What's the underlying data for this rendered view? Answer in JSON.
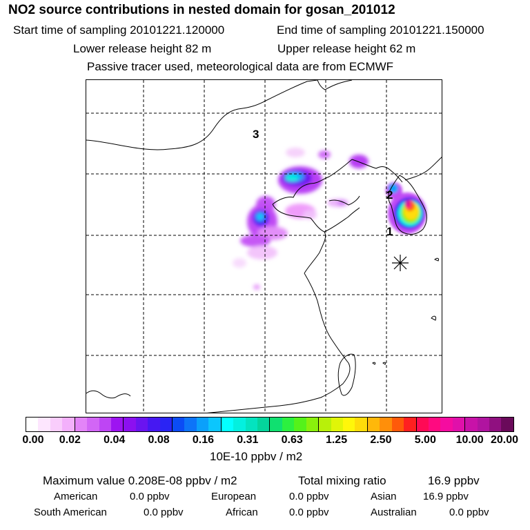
{
  "header": {
    "title": "NO2 source contributions in nested domain for gosan_201012",
    "start_time": "Start time of sampling 20101221.120000",
    "end_time": "End time of sampling 20101221.150000",
    "lower_height": "Lower release height   82 m",
    "upper_height": "Upper release height   62 m",
    "tracer_note": "Passive tracer used, meteorological data are from ECMWF"
  },
  "map": {
    "point_labels": [
      {
        "text": "1"
      },
      {
        "text": "2"
      },
      {
        "text": "3"
      }
    ],
    "receptor_marker": "asterisk-icon"
  },
  "colorbar": {
    "tick_labels": [
      "0.00",
      "0.02",
      "0.04",
      "0.08",
      "0.16",
      "0.31",
      "0.63",
      "1.25",
      "2.50",
      "5.00",
      "10.00",
      "20.00"
    ],
    "unit": "10E-10 ppbv / m2",
    "colors": [
      "#ffffff",
      "#fde6fe",
      "#f9cdfc",
      "#f3b0fb",
      "#e384f8",
      "#d266f6",
      "#be45f4",
      "#9d14f1",
      "#8c10f0",
      "#6a14f0",
      "#4618f2",
      "#2a24f4",
      "#0b4cf5",
      "#0d74f8",
      "#0ba0fb",
      "#0cc6fd",
      "#04ffff",
      "#04f0df",
      "#04e3bf",
      "#04d59c",
      "#10e070",
      "#2cf040",
      "#55f21a",
      "#8af00c",
      "#b8f00a",
      "#e0f508",
      "#fff70a",
      "#ffdc0a",
      "#ffb80a",
      "#ff8f0a",
      "#ff5a0a",
      "#ff2020",
      "#ff0a55",
      "#ff0a80",
      "#f50ca0",
      "#e010aa",
      "#c812a8",
      "#b014a0",
      "#901080",
      "#6a0a5a"
    ],
    "major_every": 4
  },
  "stats": {
    "maximum": "Maximum value  0.208E-08 ppbv / m2",
    "total_label": "Total mixing ratio",
    "total_value": "16.9 ppbv",
    "regions": [
      {
        "name": "American",
        "value": "0.0 ppbv"
      },
      {
        "name": "European",
        "value": "0.0 ppbv"
      },
      {
        "name": "Asian",
        "value": "16.9 ppbv"
      },
      {
        "name": "South American",
        "value": "0.0 ppbv"
      },
      {
        "name": "African",
        "value": "0.0 ppbv"
      },
      {
        "name": "Australian",
        "value": "0.0 ppbv"
      }
    ]
  }
}
